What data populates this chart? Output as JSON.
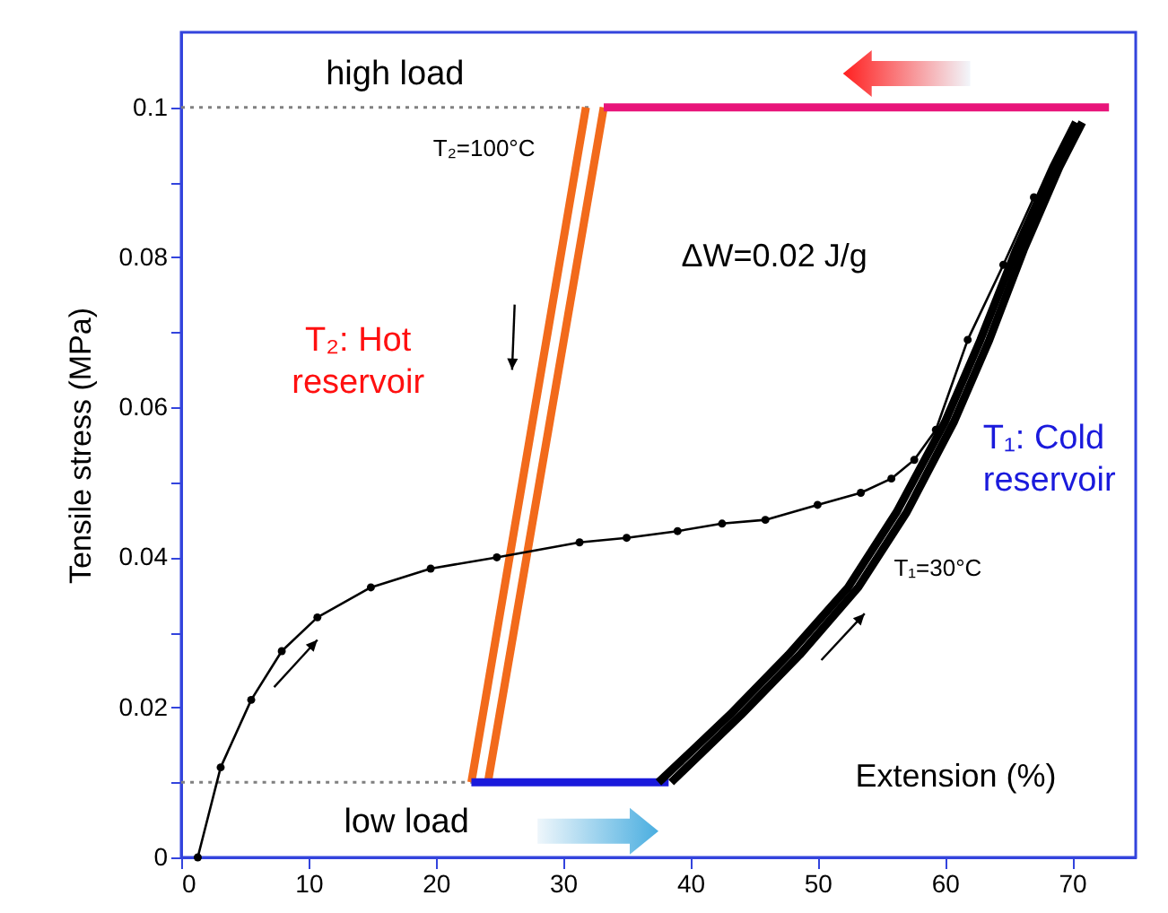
{
  "chart_data": {
    "type": "line",
    "xlabel": "Extension (%)",
    "ylabel": "Tensile stress (MPa)",
    "xlim": [
      0,
      75
    ],
    "ylim": [
      0,
      0.11
    ],
    "xticks": [
      0,
      10,
      20,
      30,
      40,
      50,
      60,
      70
    ],
    "yticks": [
      0,
      {
        "value": 0.01,
        "label": null
      },
      0.02,
      {
        "value": 0.03,
        "label": null
      },
      0.04,
      {
        "value": 0.05,
        "label": null
      },
      0.06,
      {
        "value": 0.07,
        "label": null
      },
      0.08,
      {
        "value": 0.09,
        "label": null
      },
      0.1
    ],
    "annotations": [
      "high load",
      "T₂=100°C",
      "ΔW=0.02 J/g",
      "T₂: Hot reservoir",
      "T₁: Cold reservoir",
      "T₁=30°C",
      "low load"
    ],
    "series": [
      {
        "color": "#808080",
        "line_style": "dotted",
        "marker": "none",
        "x": [
          0,
          32
        ],
        "values": [
          0.1,
          0.1
        ]
      },
      {
        "color": "#808080",
        "line_style": "dotted",
        "marker": "none",
        "x": [
          0,
          23
        ],
        "values": [
          0.01,
          0.01
        ]
      },
      {
        "color": "#f26a1b",
        "marker": "none",
        "x": [
          22.8,
          31.8
        ],
        "values": [
          0.01,
          0.1
        ]
      },
      {
        "color": "#f26a1b",
        "marker": "none",
        "x": [
          24.1,
          33.2
        ],
        "values": [
          0.01,
          0.1
        ]
      },
      {
        "color": "#1a1adc",
        "marker": "none",
        "x": [
          22.8,
          38.3
        ],
        "values": [
          0.01,
          0.01
        ]
      },
      {
        "color": "#e8157a",
        "marker": "none",
        "x": [
          33.2,
          72.9
        ],
        "values": [
          0.1,
          0.1
        ]
      },
      {
        "color": "#000000",
        "marker": "none",
        "x": [
          37.5,
          43.1,
          47.7,
          52.4,
          56.2,
          60,
          62.8,
          65.6,
          68.5,
          70.3
        ],
        "values": [
          0.01,
          0.019,
          0.027,
          0.036,
          0.046,
          0.058,
          0.069,
          0.081,
          0.092,
          0.098
        ]
      },
      {
        "color": "#000000",
        "marker": "none",
        "x": [
          38.5,
          44,
          48.6,
          53.2,
          57,
          60.7,
          63.5,
          66.2,
          69,
          70.8
        ],
        "values": [
          0.01,
          0.019,
          0.027,
          0.036,
          0.046,
          0.058,
          0.069,
          0.081,
          0.092,
          0.098
        ]
      },
      {
        "color": "#000000",
        "marker": "circle",
        "x": [
          1.3,
          3.1,
          5.5,
          7.9,
          10.7,
          14.9,
          19.6,
          24.8,
          31.3,
          35,
          39,
          42.5,
          45.9,
          50,
          53.4,
          55.8,
          57.6,
          59.3,
          61.8,
          64.6,
          67
        ],
        "values": [
          0,
          0.012,
          0.021,
          0.0275,
          0.032,
          0.036,
          0.0385,
          0.04,
          0.042,
          0.0426,
          0.0435,
          0.0445,
          0.045,
          0.047,
          0.0486,
          0.0505,
          0.053,
          0.057,
          0.069,
          0.079,
          0.088
        ]
      }
    ]
  }
}
